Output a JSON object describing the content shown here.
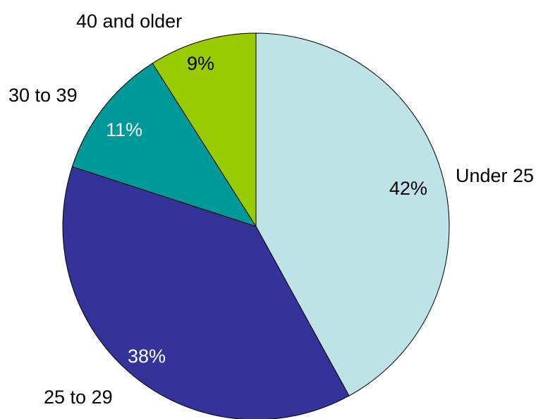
{
  "chart_data": {
    "type": "pie",
    "start_angle_deg": 0,
    "direction": "clockwise",
    "slices": [
      {
        "label": "Under 25",
        "value": 42,
        "value_label": "42%",
        "color": "#bde3e6",
        "text_color": "#000000"
      },
      {
        "label": "25 to 29",
        "value": 38,
        "value_label": "38%",
        "color": "#333399",
        "text_color": "#ffffff"
      },
      {
        "label": "30 to 39",
        "value": 11,
        "value_label": "11%",
        "color": "#009999",
        "text_color": "#ffffff"
      },
      {
        "label": "40 and older",
        "value": 9,
        "value_label": "9%",
        "color": "#99cc00",
        "text_color": "#000000"
      }
    ]
  }
}
